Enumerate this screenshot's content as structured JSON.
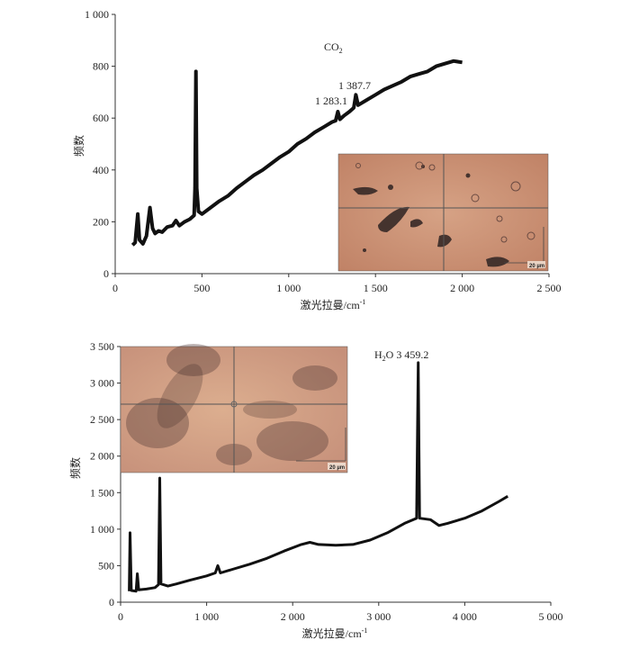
{
  "chart_data": [
    {
      "type": "line",
      "xlabel": "激光拉曼/cm",
      "xlabel_sup": "-1",
      "ylabel": "频数",
      "xlim": [
        0,
        2500
      ],
      "ylim": [
        0,
        1000
      ],
      "x_ticks": [
        0,
        500,
        1000,
        1500,
        2000,
        2500
      ],
      "x_tick_labels": [
        "0",
        "500",
        "1 000",
        "1 500",
        "2 000",
        "2 500"
      ],
      "y_ticks": [
        0,
        200,
        400,
        600,
        800,
        1000
      ],
      "y_tick_labels": [
        "0",
        "200",
        "400",
        "600",
        "800",
        "1 000"
      ],
      "grid": false,
      "series": [
        {
          "color": "#111111",
          "points": [
            [
              100,
              110
            ],
            [
              115,
              120
            ],
            [
              130,
              230
            ],
            [
              140,
              130
            ],
            [
              160,
              115
            ],
            [
              180,
              145
            ],
            [
              200,
              255
            ],
            [
              215,
              175
            ],
            [
              230,
              155
            ],
            [
              250,
              165
            ],
            [
              270,
              160
            ],
            [
              300,
              180
            ],
            [
              330,
              185
            ],
            [
              350,
              205
            ],
            [
              370,
              185
            ],
            [
              400,
              200
            ],
            [
              430,
              210
            ],
            [
              455,
              225
            ],
            [
              460,
              330
            ],
            [
              465,
              780
            ],
            [
              470,
              330
            ],
            [
              480,
              240
            ],
            [
              500,
              230
            ],
            [
              550,
              255
            ],
            [
              600,
              280
            ],
            [
              650,
              300
            ],
            [
              700,
              330
            ],
            [
              750,
              355
            ],
            [
              800,
              380
            ],
            [
              850,
              400
            ],
            [
              900,
              425
            ],
            [
              950,
              450
            ],
            [
              1000,
              470
            ],
            [
              1050,
              500
            ],
            [
              1100,
              520
            ],
            [
              1150,
              545
            ],
            [
              1200,
              565
            ],
            [
              1250,
              585
            ],
            [
              1270,
              590
            ],
            [
              1283,
              625
            ],
            [
              1295,
              595
            ],
            [
              1320,
              610
            ],
            [
              1350,
              625
            ],
            [
              1375,
              640
            ],
            [
              1387,
              690
            ],
            [
              1400,
              650
            ],
            [
              1450,
              670
            ],
            [
              1500,
              690
            ],
            [
              1550,
              710
            ],
            [
              1600,
              725
            ],
            [
              1650,
              740
            ],
            [
              1700,
              760
            ],
            [
              1750,
              770
            ],
            [
              1800,
              780
            ],
            [
              1850,
              800
            ],
            [
              1900,
              810
            ],
            [
              1950,
              820
            ],
            [
              2000,
              815
            ]
          ]
        }
      ],
      "annotations": [
        {
          "text": "CO",
          "sub": "2",
          "x": 1270,
          "y": 870
        },
        {
          "text": "1 387.7",
          "x": 1290,
          "y": 720
        },
        {
          "text": "1 283.1",
          "x": 1150,
          "y": 650
        }
      ],
      "inset": {
        "scale_label": "20 µm",
        "background": "#c9906f"
      }
    },
    {
      "type": "line",
      "xlabel": "激光拉曼/cm",
      "xlabel_sup": "-1",
      "ylabel": "频数",
      "xlim": [
        0,
        5000
      ],
      "ylim": [
        0,
        3500
      ],
      "x_ticks": [
        0,
        1000,
        2000,
        3000,
        4000,
        5000
      ],
      "x_tick_labels": [
        "0",
        "1 000",
        "2 000",
        "3 000",
        "4 000",
        "5 000"
      ],
      "y_ticks": [
        0,
        500,
        1000,
        1500,
        2000,
        2500,
        3000,
        3500
      ],
      "y_tick_labels": [
        "0",
        "500",
        "1 000",
        "1 500",
        "2 000",
        "2 500",
        "3 000",
        "3 500"
      ],
      "grid": false,
      "series": [
        {
          "color": "#111111",
          "points": [
            [
              100,
              150
            ],
            [
              110,
              950
            ],
            [
              125,
              160
            ],
            [
              180,
              150
            ],
            [
              195,
              390
            ],
            [
              210,
              170
            ],
            [
              300,
              180
            ],
            [
              400,
              200
            ],
            [
              440,
              240
            ],
            [
              455,
              1700
            ],
            [
              470,
              250
            ],
            [
              550,
              220
            ],
            [
              650,
              250
            ],
            [
              800,
              300
            ],
            [
              1000,
              360
            ],
            [
              1100,
              400
            ],
            [
              1130,
              500
            ],
            [
              1160,
              400
            ],
            [
              1300,
              450
            ],
            [
              1500,
              520
            ],
            [
              1700,
              600
            ],
            [
              1900,
              700
            ],
            [
              2100,
              790
            ],
            [
              2200,
              820
            ],
            [
              2300,
              790
            ],
            [
              2500,
              780
            ],
            [
              2700,
              790
            ],
            [
              2900,
              850
            ],
            [
              3100,
              950
            ],
            [
              3300,
              1080
            ],
            [
              3440,
              1150
            ],
            [
              3459,
              3280
            ],
            [
              3475,
              1150
            ],
            [
              3600,
              1130
            ],
            [
              3700,
              1050
            ],
            [
              3800,
              1080
            ],
            [
              4000,
              1150
            ],
            [
              4200,
              1250
            ],
            [
              4400,
              1380
            ],
            [
              4500,
              1450
            ]
          ]
        }
      ],
      "annotations": [
        {
          "text": "H",
          "sub": "2",
          "text2": "O  3 459.2",
          "x": 2940,
          "y": 3390
        }
      ],
      "inset": {
        "scale_label": "20 µm",
        "background": "#d5a283"
      }
    }
  ]
}
